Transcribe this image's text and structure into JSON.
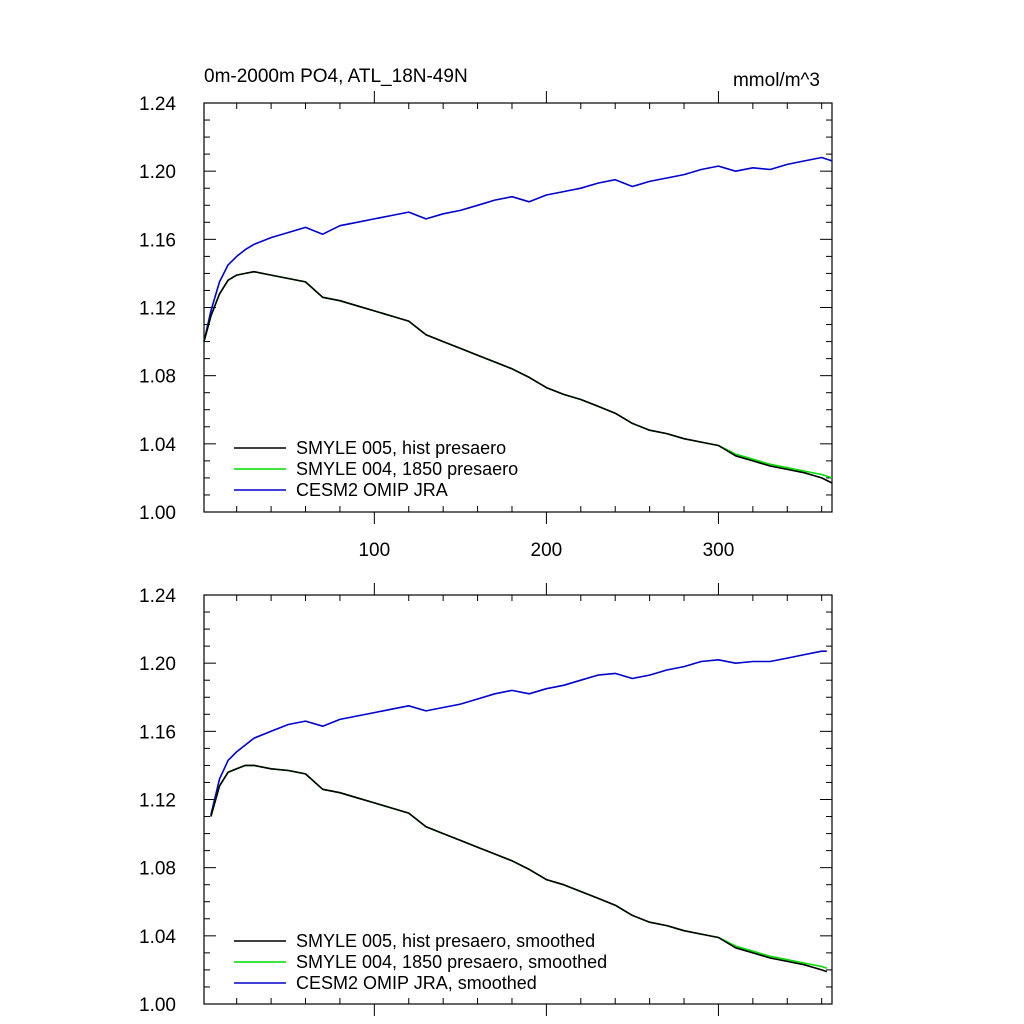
{
  "figure": {
    "title_left": "0m-2000m PO4, ATL_18N-49N",
    "title_right": "mmol/m^3"
  },
  "chart_data": [
    {
      "type": "line",
      "title": "0m-2000m PO4, ATL_18N-49N",
      "units": "mmol/m^3",
      "xlim": [
        1,
        366
      ],
      "ylim": [
        1.0,
        1.24
      ],
      "x_ticks": [
        100,
        200,
        300
      ],
      "x_tick_labels": [
        "100",
        "200",
        "300"
      ],
      "y_ticks": [
        "1.00",
        "1.04",
        "1.08",
        "1.12",
        "1.16",
        "1.20",
        "1.24"
      ],
      "grid": false,
      "legend_position": "bottom-left",
      "series": [
        {
          "name": "SMYLE 005, hist presaero",
          "color": "#000000",
          "x": [
            1,
            5,
            10,
            15,
            20,
            25,
            30,
            40,
            50,
            60,
            70,
            80,
            90,
            100,
            110,
            120,
            130,
            140,
            150,
            160,
            170,
            180,
            190,
            200,
            210,
            220,
            230,
            240,
            250,
            260,
            270,
            280,
            290,
            300,
            310,
            320,
            330,
            340,
            350,
            360,
            366
          ],
          "values": [
            1.1,
            1.115,
            1.128,
            1.136,
            1.139,
            1.14,
            1.141,
            1.139,
            1.137,
            1.135,
            1.126,
            1.124,
            1.121,
            1.118,
            1.115,
            1.112,
            1.104,
            1.1,
            1.096,
            1.092,
            1.088,
            1.084,
            1.079,
            1.073,
            1.069,
            1.066,
            1.062,
            1.058,
            1.052,
            1.048,
            1.046,
            1.043,
            1.041,
            1.039,
            1.033,
            1.03,
            1.027,
            1.025,
            1.023,
            1.02,
            1.017
          ]
        },
        {
          "name": "SMYLE 004, 1850 presaero",
          "color": "#00dd00",
          "x": [
            1,
            5,
            10,
            15,
            20,
            25,
            30,
            40,
            50,
            60,
            70,
            80,
            90,
            100,
            110,
            120,
            130,
            140,
            150,
            160,
            170,
            180,
            190,
            200,
            210,
            220,
            230,
            240,
            250,
            260,
            270,
            280,
            290,
            300,
            310,
            320,
            330,
            340,
            350,
            360,
            366
          ],
          "values": [
            1.1,
            1.115,
            1.128,
            1.136,
            1.139,
            1.14,
            1.141,
            1.139,
            1.137,
            1.135,
            1.126,
            1.124,
            1.121,
            1.118,
            1.115,
            1.112,
            1.104,
            1.1,
            1.096,
            1.092,
            1.088,
            1.084,
            1.079,
            1.073,
            1.069,
            1.066,
            1.062,
            1.058,
            1.052,
            1.048,
            1.046,
            1.043,
            1.041,
            1.039,
            1.034,
            1.031,
            1.028,
            1.026,
            1.024,
            1.022,
            1.02
          ]
        },
        {
          "name": "CESM2 OMIP JRA",
          "color": "#0000cc",
          "x": [
            1,
            5,
            10,
            15,
            20,
            25,
            30,
            40,
            50,
            60,
            70,
            80,
            90,
            100,
            110,
            120,
            130,
            140,
            150,
            160,
            170,
            180,
            190,
            200,
            210,
            220,
            230,
            240,
            250,
            260,
            270,
            280,
            290,
            300,
            310,
            320,
            330,
            340,
            350,
            360,
            366
          ],
          "values": [
            1.1,
            1.118,
            1.135,
            1.145,
            1.15,
            1.154,
            1.157,
            1.161,
            1.164,
            1.167,
            1.163,
            1.168,
            1.17,
            1.172,
            1.174,
            1.176,
            1.172,
            1.175,
            1.177,
            1.18,
            1.183,
            1.185,
            1.182,
            1.186,
            1.188,
            1.19,
            1.193,
            1.195,
            1.191,
            1.194,
            1.196,
            1.198,
            1.201,
            1.203,
            1.2,
            1.202,
            1.201,
            1.204,
            1.206,
            1.208,
            1.206
          ]
        }
      ]
    },
    {
      "type": "line",
      "title": "",
      "xlim": [
        1,
        366
      ],
      "ylim": [
        1.0,
        1.24
      ],
      "x_ticks": [
        100,
        200,
        300
      ],
      "x_tick_labels": [],
      "y_ticks": [
        "1.00",
        "1.04",
        "1.08",
        "1.12",
        "1.16",
        "1.20",
        "1.24"
      ],
      "grid": false,
      "legend_position": "bottom-left",
      "series": [
        {
          "name": "SMYLE 005, hist presaero, smoothed",
          "color": "#000000",
          "x": [
            5,
            10,
            15,
            20,
            25,
            30,
            40,
            50,
            60,
            70,
            80,
            90,
            100,
            110,
            120,
            130,
            140,
            150,
            160,
            170,
            180,
            190,
            200,
            210,
            220,
            230,
            240,
            250,
            260,
            270,
            280,
            290,
            300,
            310,
            320,
            330,
            340,
            350,
            360,
            363
          ],
          "values": [
            1.11,
            1.128,
            1.136,
            1.138,
            1.14,
            1.14,
            1.138,
            1.137,
            1.135,
            1.126,
            1.124,
            1.121,
            1.118,
            1.115,
            1.112,
            1.104,
            1.1,
            1.096,
            1.092,
            1.088,
            1.084,
            1.079,
            1.073,
            1.07,
            1.066,
            1.062,
            1.058,
            1.052,
            1.048,
            1.046,
            1.043,
            1.041,
            1.039,
            1.033,
            1.03,
            1.027,
            1.025,
            1.023,
            1.02,
            1.019
          ]
        },
        {
          "name": "SMYLE 004, 1850 presaero, smoothed",
          "color": "#00dd00",
          "x": [
            5,
            10,
            15,
            20,
            25,
            30,
            40,
            50,
            60,
            70,
            80,
            90,
            100,
            110,
            120,
            130,
            140,
            150,
            160,
            170,
            180,
            190,
            200,
            210,
            220,
            230,
            240,
            250,
            260,
            270,
            280,
            290,
            300,
            310,
            320,
            330,
            340,
            350,
            360,
            363
          ],
          "values": [
            1.11,
            1.128,
            1.136,
            1.138,
            1.14,
            1.14,
            1.138,
            1.137,
            1.135,
            1.126,
            1.124,
            1.121,
            1.118,
            1.115,
            1.112,
            1.104,
            1.1,
            1.096,
            1.092,
            1.088,
            1.084,
            1.079,
            1.073,
            1.07,
            1.066,
            1.062,
            1.058,
            1.052,
            1.048,
            1.046,
            1.043,
            1.041,
            1.039,
            1.034,
            1.031,
            1.028,
            1.026,
            1.024,
            1.022,
            1.021
          ]
        },
        {
          "name": "CESM2 OMIP JRA, smoothed",
          "color": "#0000cc",
          "x": [
            5,
            10,
            15,
            20,
            25,
            30,
            40,
            50,
            60,
            70,
            80,
            90,
            100,
            110,
            120,
            130,
            140,
            150,
            160,
            170,
            180,
            190,
            200,
            210,
            220,
            230,
            240,
            250,
            260,
            270,
            280,
            290,
            300,
            310,
            320,
            330,
            340,
            350,
            360,
            363
          ],
          "values": [
            1.111,
            1.132,
            1.143,
            1.148,
            1.152,
            1.156,
            1.16,
            1.164,
            1.166,
            1.163,
            1.167,
            1.169,
            1.171,
            1.173,
            1.175,
            1.172,
            1.174,
            1.176,
            1.179,
            1.182,
            1.184,
            1.182,
            1.185,
            1.187,
            1.19,
            1.193,
            1.194,
            1.191,
            1.193,
            1.196,
            1.198,
            1.201,
            1.202,
            1.2,
            1.201,
            1.201,
            1.203,
            1.205,
            1.207,
            1.207
          ]
        }
      ]
    }
  ]
}
